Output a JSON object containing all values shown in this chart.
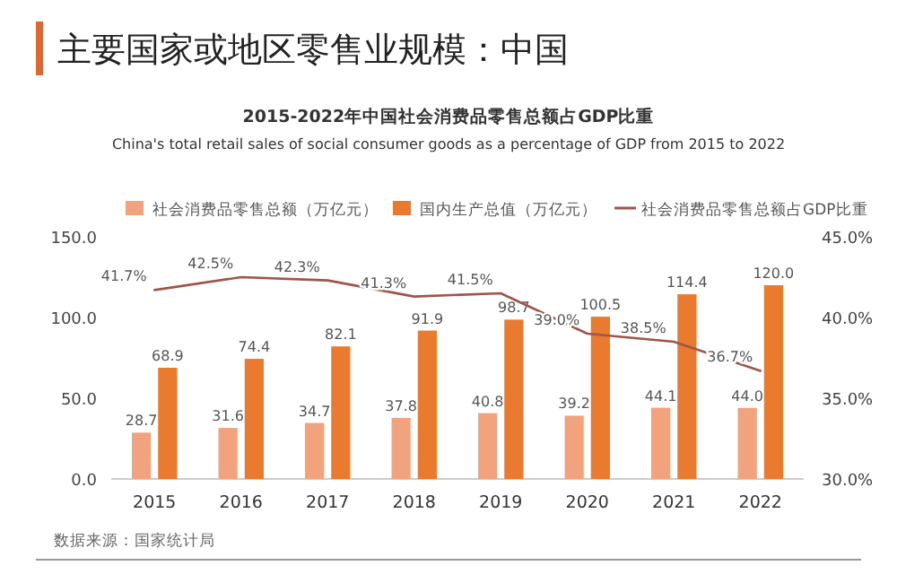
{
  "chart_data": {
    "type": "bar",
    "title": "主要国家或地区零售业规模：中国",
    "subtitle": "2015-2022年中国社会消费品零售总额占GDP比重\nChina's total retail sales of social consumer goods as a percentage of GDP from 2015 to 2022",
    "categories": [
      "2015",
      "2016",
      "2017",
      "2018",
      "2019",
      "2020",
      "2021",
      "2022"
    ],
    "series": [
      {
        "name": "社会消费品零售总额（万亿元）",
        "color": "#f2a27c",
        "values": [
          28.7,
          31.6,
          34.7,
          37.8,
          40.8,
          39.2,
          44.1,
          44.0
        ],
        "value_labels": [
          "28.7",
          "31.6",
          "34.7",
          "37.8",
          "40.8",
          "39.2",
          "44.1",
          "44.0"
        ]
      },
      {
        "name": "国内生产总值（万亿元）",
        "color": "#e97a2e",
        "values": [
          68.9,
          74.4,
          82.1,
          91.9,
          98.7,
          100.5,
          114.4,
          120.0
        ],
        "value_labels": [
          "68.9",
          "74.4",
          "82.1",
          "91.9",
          "98.7",
          "100.5",
          "114.4",
          "120.0"
        ]
      },
      {
        "name": "社会消费品零售总额占GDP比重",
        "type": "line",
        "axis": "y2",
        "color": "#a0554a",
        "values": [
          41.7,
          42.5,
          42.3,
          41.3,
          41.5,
          39.0,
          38.5,
          36.7
        ],
        "value_labels": [
          "41.7%",
          "42.5%",
          "42.3%",
          "41.3%",
          "41.5%",
          "39.0%",
          "38.5%",
          "36.7%"
        ]
      }
    ],
    "ylim": [
      0,
      150
    ],
    "yticks": [
      {
        "value": 0,
        "label": "0.0"
      },
      {
        "value": 50,
        "label": "50.0"
      },
      {
        "value": 100,
        "label": "100.0"
      },
      {
        "value": 150,
        "label": "150.0"
      }
    ],
    "y2lim": [
      30,
      45
    ],
    "y2ticks": [
      {
        "value": 30,
        "label": "30.0%"
      },
      {
        "value": 35,
        "label": "35.0%"
      },
      {
        "value": 40,
        "label": "40.0%"
      },
      {
        "value": 45,
        "label": "45.0%"
      }
    ],
    "legend": "top",
    "grid": false,
    "marker": "none",
    "annotations": [
      "数据来源：国家统计局"
    ]
  }
}
